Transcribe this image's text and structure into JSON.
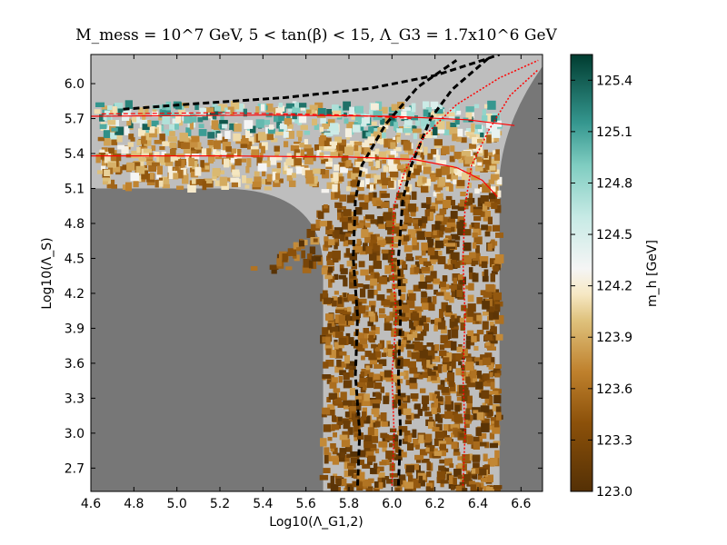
{
  "chart_data": {
    "type": "heatmap",
    "title": "M_mess = 10^7 GeV, 5 < tan(β) < 15, Λ_G3 = 1.7x10^6 GeV",
    "xlabel": "Log10(Λ_G1,2)",
    "ylabel": "Log10(Λ_S)",
    "xlim": [
      4.6,
      6.7
    ],
    "ylim": [
      2.5,
      6.25
    ],
    "x_ticks": [
      "4.6",
      "4.8",
      "5.0",
      "5.2",
      "5.4",
      "5.6",
      "5.8",
      "6.0",
      "6.2",
      "6.4",
      "6.6"
    ],
    "y_ticks": [
      "2.7",
      "3.0",
      "3.3",
      "3.6",
      "3.9",
      "4.2",
      "4.5",
      "4.8",
      "5.1",
      "5.4",
      "5.7",
      "6.0"
    ],
    "colorbar": {
      "label": "m_h [GeV]",
      "min": 123.0,
      "max": 125.55,
      "ticks": [
        "123.0",
        "123.3",
        "123.6",
        "123.9",
        "124.2",
        "124.5",
        "124.8",
        "125.1",
        "125.4"
      ],
      "stops": [
        [
          123.0,
          "#543005"
        ],
        [
          123.4,
          "#8c510a"
        ],
        [
          123.7,
          "#bf812d"
        ],
        [
          124.0,
          "#dfc27d"
        ],
        [
          124.15,
          "#f6e8c3"
        ],
        [
          124.3,
          "#f5f5f5"
        ],
        [
          124.6,
          "#c7eae5"
        ],
        [
          124.9,
          "#80cdc1"
        ],
        [
          125.15,
          "#35978f"
        ],
        [
          125.55,
          "#003c30"
        ]
      ]
    },
    "excluded_color_top": "#bebebe",
    "excluded_color_side": "#777777",
    "contours": [
      {
        "color": "#000000",
        "style": "dashed",
        "points": [
          [
            5.84,
            2.55
          ],
          [
            5.85,
            3.0
          ],
          [
            5.83,
            3.5
          ],
          [
            5.84,
            4.0
          ],
          [
            5.82,
            4.5
          ],
          [
            5.83,
            5.0
          ],
          [
            5.86,
            5.3
          ],
          [
            5.97,
            5.65
          ],
          [
            6.12,
            5.97
          ],
          [
            6.3,
            6.2
          ]
        ]
      },
      {
        "color": "#000000",
        "style": "dashed",
        "points": [
          [
            6.03,
            2.55
          ],
          [
            6.04,
            3.0
          ],
          [
            6.03,
            3.5
          ],
          [
            6.04,
            4.0
          ],
          [
            6.03,
            4.5
          ],
          [
            6.05,
            5.0
          ],
          [
            6.09,
            5.3
          ],
          [
            6.18,
            5.7
          ],
          [
            6.28,
            5.95
          ],
          [
            6.45,
            6.22
          ]
        ]
      },
      {
        "color": "#000000",
        "style": "dashed",
        "points": [
          [
            4.75,
            5.78
          ],
          [
            5.1,
            5.83
          ],
          [
            5.5,
            5.88
          ],
          [
            5.9,
            5.96
          ],
          [
            6.2,
            6.07
          ],
          [
            6.42,
            6.2
          ],
          [
            6.5,
            6.25
          ]
        ]
      },
      {
        "color": "#ff0000",
        "style": "dotted",
        "points": [
          [
            6.0,
            2.55
          ],
          [
            6.01,
            3.0
          ],
          [
            6.0,
            3.5
          ],
          [
            6.02,
            4.0
          ],
          [
            6.0,
            4.5
          ],
          [
            6.01,
            4.95
          ],
          [
            6.06,
            5.25
          ],
          [
            6.15,
            5.55
          ],
          [
            6.3,
            5.82
          ],
          [
            6.5,
            6.05
          ],
          [
            6.68,
            6.2
          ]
        ]
      },
      {
        "color": "#ff0000",
        "style": "dotted",
        "points": [
          [
            6.33,
            2.55
          ],
          [
            6.34,
            3.0
          ],
          [
            6.33,
            3.5
          ],
          [
            6.34,
            4.0
          ],
          [
            6.33,
            4.5
          ],
          [
            6.34,
            4.95
          ],
          [
            6.37,
            5.3
          ],
          [
            6.45,
            5.6
          ],
          [
            6.55,
            5.9
          ],
          [
            6.68,
            6.12
          ]
        ]
      },
      {
        "color": "#ff0000",
        "style": "solid",
        "points": [
          [
            4.6,
            5.38
          ],
          [
            5.2,
            5.38
          ],
          [
            5.8,
            5.37
          ],
          [
            6.1,
            5.35
          ],
          [
            6.3,
            5.28
          ],
          [
            6.42,
            5.17
          ],
          [
            6.49,
            5.03
          ]
        ]
      },
      {
        "color": "#ff0000",
        "style": "solid",
        "points": [
          [
            4.6,
            5.72
          ],
          [
            5.4,
            5.73
          ],
          [
            6.0,
            5.72
          ],
          [
            6.35,
            5.69
          ],
          [
            6.57,
            5.64
          ]
        ]
      },
      {
        "color": "#ff0000",
        "style": "dashed",
        "points": [
          [
            4.65,
            5.74
          ],
          [
            5.2,
            5.75
          ],
          [
            5.8,
            5.73
          ],
          [
            6.1,
            5.7
          ]
        ]
      }
    ]
  }
}
